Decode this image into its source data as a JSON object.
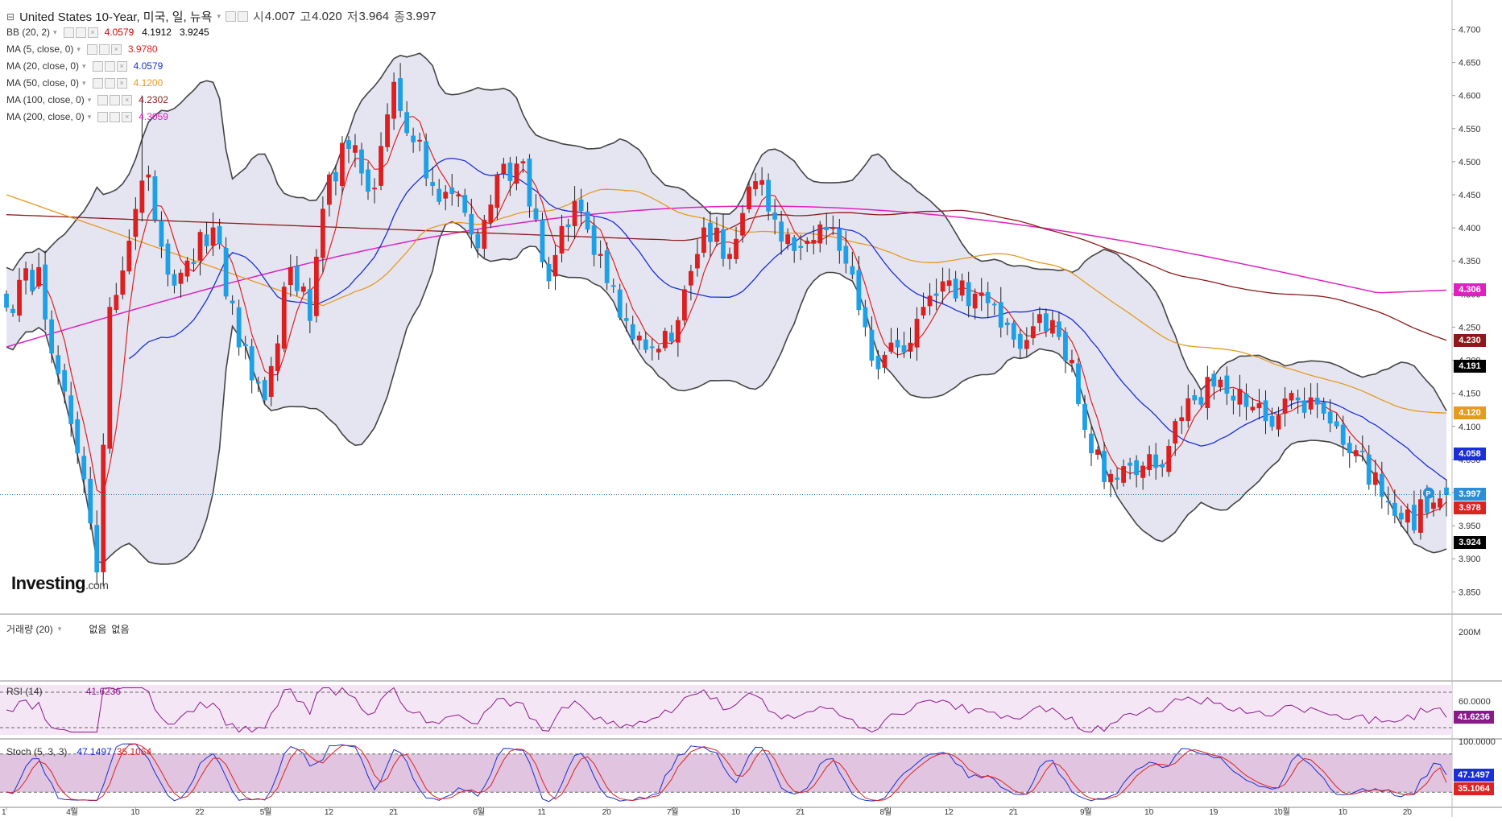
{
  "header": {
    "title": "United States 10-Year, 미국, 일, 뉴욕",
    "open_label": "시",
    "open": "4.007",
    "high_label": "고",
    "high": "4.020",
    "low_label": "저",
    "low": "3.964",
    "close_label": "종",
    "close": "3.997"
  },
  "indicators": [
    {
      "name": "BB (20, 2)",
      "values": [
        "4.0579",
        "4.1912",
        "3.9245"
      ],
      "colors": [
        "#cc0000",
        "#000000",
        "#000000"
      ]
    },
    {
      "name": "MA (5, close, 0)",
      "values": [
        "3.9780"
      ],
      "colors": [
        "#dd2222"
      ]
    },
    {
      "name": "MA (20, close, 0)",
      "values": [
        "4.0579"
      ],
      "colors": [
        "#1a2fd6"
      ]
    },
    {
      "name": "MA (50, close, 0)",
      "values": [
        "4.1200"
      ],
      "colors": [
        "#e69a1e"
      ]
    },
    {
      "name": "MA (100, close, 0)",
      "values": [
        "4.2302"
      ],
      "colors": [
        "#8b1a1a"
      ]
    },
    {
      "name": "MA (200, close, 0)",
      "values": [
        "4.3059"
      ],
      "colors": [
        "#e020c0"
      ]
    }
  ],
  "price_tags": [
    {
      "value": "4.306",
      "color": "#e020c0"
    },
    {
      "value": "4.230",
      "color": "#8b1a1a"
    },
    {
      "value": "4.191",
      "color": "#000000"
    },
    {
      "value": "4.120",
      "color": "#e69a1e"
    },
    {
      "value": "4.058",
      "color": "#1a2fd6"
    },
    {
      "value": "3.997",
      "color": "#2a8fd6"
    },
    {
      "value": "3.978",
      "color": "#dd2222"
    },
    {
      "value": "3.924",
      "color": "#000000"
    }
  ],
  "volume": {
    "label": "거래량 (20)",
    "v1": "없음",
    "v2": "없음",
    "axis": "200M"
  },
  "rsi": {
    "label": "RSI (14)",
    "value": "41.6236",
    "axis": "60.0000",
    "color": "#8a1a8a"
  },
  "stoch": {
    "label": "Stoch (5, 3, 3)",
    "k": "47.1497",
    "d": "35.1064",
    "axis": "100.0000",
    "k_color": "#1a2fd6",
    "d_color": "#dd2222"
  },
  "logo": {
    "text": "Investing",
    "suffix": ".com"
  },
  "chart_data": {
    "type": "candlestick",
    "y_ticks": [
      "4.700",
      "4.650",
      "4.600",
      "4.550",
      "4.500",
      "4.450",
      "4.400",
      "4.350",
      "4.300",
      "4.250",
      "4.200",
      "4.150",
      "4.100",
      "4.050",
      "4.000",
      "3.950",
      "3.900",
      "3.850"
    ],
    "ylim": [
      3.82,
      4.72
    ],
    "x_labels": [
      {
        "label": "1",
        "i": 0
      },
      {
        "label": "4월",
        "i": 10
      },
      {
        "label": "10",
        "i": 20
      },
      {
        "label": "22",
        "i": 30
      },
      {
        "label": "5월",
        "i": 40
      },
      {
        "label": "12",
        "i": 50
      },
      {
        "label": "21",
        "i": 60
      },
      {
        "label": "6월",
        "i": 73
      },
      {
        "label": "11",
        "i": 83
      },
      {
        "label": "20",
        "i": 93
      },
      {
        "label": "7월",
        "i": 103
      },
      {
        "label": "10",
        "i": 113
      },
      {
        "label": "21",
        "i": 123
      },
      {
        "label": "8월",
        "i": 136
      },
      {
        "label": "12",
        "i": 146
      },
      {
        "label": "21",
        "i": 156
      },
      {
        "label": "9월",
        "i": 167
      },
      {
        "label": "10",
        "i": 177
      },
      {
        "label": "19",
        "i": 187
      },
      {
        "label": "10월",
        "i": 197
      },
      {
        "label": "10",
        "i": 207
      },
      {
        "label": "20",
        "i": 217
      }
    ],
    "bars": 224,
    "anchors": [
      {
        "i": 0,
        "c": 4.28
      },
      {
        "i": 5,
        "c": 4.34
      },
      {
        "i": 8,
        "c": 4.18
      },
      {
        "i": 11,
        "c": 4.06
      },
      {
        "i": 14,
        "c": 3.88
      },
      {
        "i": 16,
        "c": 4.28
      },
      {
        "i": 19,
        "c": 4.38
      },
      {
        "i": 22,
        "c": 4.48
      },
      {
        "i": 25,
        "c": 4.33
      },
      {
        "i": 28,
        "c": 4.35
      },
      {
        "i": 32,
        "c": 4.4
      },
      {
        "i": 36,
        "c": 4.22
      },
      {
        "i": 40,
        "c": 4.14
      },
      {
        "i": 44,
        "c": 4.34
      },
      {
        "i": 47,
        "c": 4.26
      },
      {
        "i": 50,
        "c": 4.48
      },
      {
        "i": 53,
        "c": 4.52
      },
      {
        "i": 57,
        "c": 4.46
      },
      {
        "i": 60,
        "c": 4.62
      },
      {
        "i": 63,
        "c": 4.53
      },
      {
        "i": 67,
        "c": 4.44
      },
      {
        "i": 70,
        "c": 4.45
      },
      {
        "i": 73,
        "c": 4.37
      },
      {
        "i": 76,
        "c": 4.48
      },
      {
        "i": 80,
        "c": 4.5
      },
      {
        "i": 84,
        "c": 4.32
      },
      {
        "i": 88,
        "c": 4.44
      },
      {
        "i": 92,
        "c": 4.36
      },
      {
        "i": 96,
        "c": 4.26
      },
      {
        "i": 100,
        "c": 4.22
      },
      {
        "i": 104,
        "c": 4.26
      },
      {
        "i": 108,
        "c": 4.4
      },
      {
        "i": 112,
        "c": 4.36
      },
      {
        "i": 116,
        "c": 4.47
      },
      {
        "i": 120,
        "c": 4.38
      },
      {
        "i": 124,
        "c": 4.38
      },
      {
        "i": 128,
        "c": 4.4
      },
      {
        "i": 131,
        "c": 4.33
      },
      {
        "i": 134,
        "c": 4.2
      },
      {
        "i": 138,
        "c": 4.22
      },
      {
        "i": 142,
        "c": 4.28
      },
      {
        "i": 146,
        "c": 4.32
      },
      {
        "i": 150,
        "c": 4.3
      },
      {
        "i": 154,
        "c": 4.25
      },
      {
        "i": 158,
        "c": 4.23
      },
      {
        "i": 162,
        "c": 4.26
      },
      {
        "i": 165,
        "c": 4.2
      },
      {
        "i": 168,
        "c": 4.06
      },
      {
        "i": 172,
        "c": 4.02
      },
      {
        "i": 176,
        "c": 4.04
      },
      {
        "i": 180,
        "c": 4.07
      },
      {
        "i": 184,
        "c": 4.14
      },
      {
        "i": 188,
        "c": 4.17
      },
      {
        "i": 192,
        "c": 4.13
      },
      {
        "i": 196,
        "c": 4.1
      },
      {
        "i": 200,
        "c": 4.14
      },
      {
        "i": 204,
        "c": 4.12
      },
      {
        "i": 208,
        "c": 4.06
      },
      {
        "i": 212,
        "c": 4.03
      },
      {
        "i": 216,
        "c": 3.96
      },
      {
        "i": 220,
        "c": 3.97
      },
      {
        "i": 223,
        "c": 3.997
      }
    ],
    "series": [
      {
        "name": "MA (5, close, 0)",
        "color": "#dd2222",
        "period": 5
      },
      {
        "name": "MA (20, close, 0)",
        "color": "#1a2fd6",
        "period": 20
      },
      {
        "name": "MA (50, close, 0)",
        "color": "#e69a1e",
        "period": 50
      },
      {
        "name": "MA (100, close, 0)",
        "color": "#8b1a1a",
        "period": 100
      },
      {
        "name": "MA (200, close, 0)",
        "color": "#e020c0",
        "period": 200
      }
    ],
    "ma50_start": 4.45,
    "ma100_start": 4.42,
    "ma200_start": 4.22,
    "ma100_end": 4.2302,
    "ma200_end": 4.3059,
    "ma50_end": 4.12,
    "rsi_ylim": [
      20,
      80
    ],
    "rsi_levels": [
      30,
      70
    ],
    "stoch_ylim": [
      0,
      100
    ],
    "stoch_levels": [
      20,
      80
    ]
  }
}
